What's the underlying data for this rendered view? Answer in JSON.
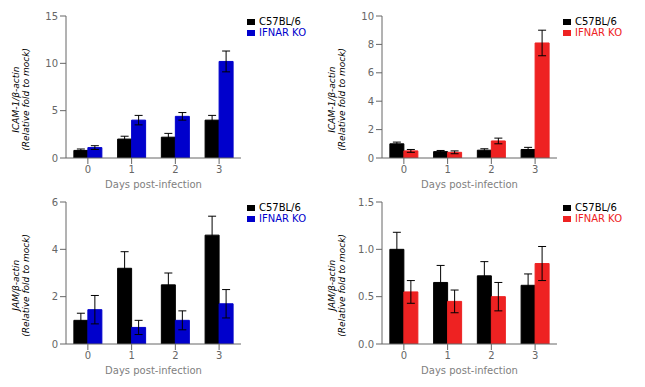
{
  "chart_data": [
    {
      "type": "bar",
      "categories": [
        "0",
        "1",
        "2",
        "3"
      ],
      "xlabel": "Days post-infection",
      "ylabel": "ICAM-1/β-actin\n(Relative fold to mock)",
      "ylim": [
        0,
        15
      ],
      "yticks": [
        0,
        5,
        10,
        15
      ],
      "grid": false,
      "legend": "right",
      "series": [
        {
          "name": "C57BL/6",
          "color": "#000000",
          "values": [
            0.8,
            2.0,
            2.2,
            4.0
          ],
          "errors": [
            0.15,
            0.3,
            0.4,
            0.5
          ]
        },
        {
          "name": "IFNAR KO",
          "color": "#0000CC",
          "values": [
            1.1,
            4.0,
            4.4,
            10.2
          ],
          "errors": [
            0.2,
            0.5,
            0.4,
            1.1
          ]
        }
      ]
    },
    {
      "type": "bar",
      "categories": [
        "0",
        "1",
        "2",
        "3"
      ],
      "xlabel": "Days post-infection",
      "ylabel": "ICAM-1/β-actin\n(Relative fold to mock)",
      "ylim": [
        0,
        10
      ],
      "yticks": [
        0,
        2,
        4,
        6,
        8,
        10
      ],
      "grid": false,
      "legend": "right",
      "series": [
        {
          "name": "C57BL/6",
          "color": "#000000",
          "values": [
            1.0,
            0.45,
            0.55,
            0.6
          ],
          "errors": [
            0.12,
            0.08,
            0.1,
            0.15
          ]
        },
        {
          "name": "IFNAR KO",
          "color": "#EE2222",
          "values": [
            0.5,
            0.4,
            1.2,
            8.1
          ],
          "errors": [
            0.1,
            0.1,
            0.2,
            0.9
          ]
        }
      ]
    },
    {
      "type": "bar",
      "categories": [
        "0",
        "1",
        "2",
        "3"
      ],
      "xlabel": "Days post-infection",
      "ylabel": "JAM/β-actin\n(Relative fold to mock)",
      "ylim": [
        0,
        6
      ],
      "yticks": [
        0,
        2,
        4,
        6
      ],
      "grid": false,
      "legend": "right",
      "series": [
        {
          "name": "C57BL/6",
          "color": "#000000",
          "values": [
            1.0,
            3.2,
            2.5,
            4.6
          ],
          "errors": [
            0.3,
            0.7,
            0.5,
            0.8
          ]
        },
        {
          "name": "IFNAR KO",
          "color": "#0000CC",
          "values": [
            1.45,
            0.7,
            1.0,
            1.7
          ],
          "errors": [
            0.6,
            0.3,
            0.4,
            0.6
          ]
        }
      ]
    },
    {
      "type": "bar",
      "categories": [
        "0",
        "1",
        "2",
        "3"
      ],
      "xlabel": "Days post-infection",
      "ylabel": "JAM/β-actin\n(Relative fold to mock)",
      "ylim": [
        0,
        1.5
      ],
      "yticks": [
        {
          "value": 0,
          "label": "0.0"
        },
        0.5,
        {
          "value": 1,
          "label": "1.0"
        },
        1.5
      ],
      "grid": false,
      "legend": "right",
      "series": [
        {
          "name": "C57BL/6",
          "color": "#000000",
          "values": [
            1.0,
            0.65,
            0.72,
            0.62
          ],
          "errors": [
            0.18,
            0.18,
            0.15,
            0.12
          ]
        },
        {
          "name": "IFNAR KO",
          "color": "#EE2222",
          "values": [
            0.55,
            0.45,
            0.5,
            0.85
          ],
          "errors": [
            0.12,
            0.12,
            0.15,
            0.18
          ]
        }
      ]
    }
  ]
}
